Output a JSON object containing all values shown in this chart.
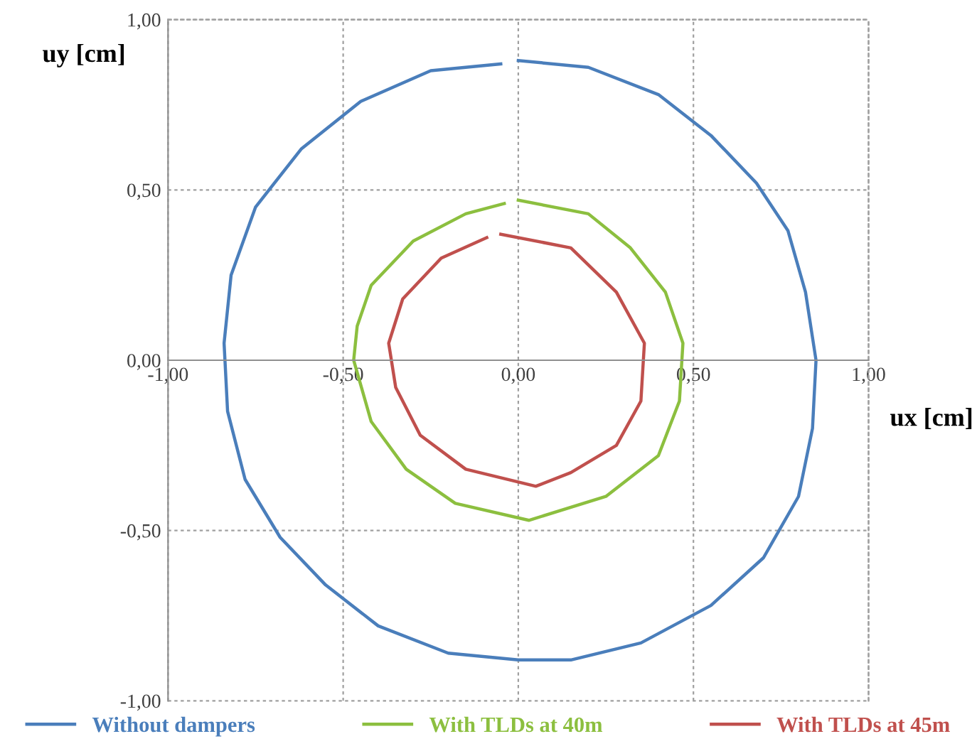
{
  "chart_data": {
    "type": "line",
    "xlabel": "ux [cm]",
    "ylabel": "uy [cm]",
    "xlim": [
      -1,
      1
    ],
    "ylim": [
      -1,
      1
    ],
    "xticks": [
      {
        "value": -1,
        "label": "-1,00"
      },
      {
        "value": -0.5,
        "label": "-0,50"
      },
      {
        "value": 0,
        "label": "0,00"
      },
      {
        "value": 0.5,
        "label": "0,50"
      },
      {
        "value": 1,
        "label": "1,00"
      }
    ],
    "yticks": [
      {
        "value": -1,
        "label": "-1,00"
      },
      {
        "value": -0.5,
        "label": "-0,50"
      },
      {
        "value": 0,
        "label": "0,00"
      },
      {
        "value": 0.5,
        "label": "0,50"
      },
      {
        "value": 1,
        "label": "1,00"
      }
    ],
    "grid": true,
    "legend": "bottom",
    "marker": "none",
    "line_style": "solid",
    "series": [
      {
        "name": "Without dampers",
        "color": "#4a7ebb",
        "x": [
          0,
          0.2,
          0.4,
          0.55,
          0.68,
          0.77,
          0.82,
          0.85,
          0.84,
          0.8,
          0.7,
          0.55,
          0.35,
          0.15,
          0,
          -0.2,
          -0.4,
          -0.55,
          -0.68,
          -0.78,
          -0.83,
          -0.84,
          -0.82,
          -0.75,
          -0.62,
          -0.45,
          -0.25,
          -0.05
        ],
        "values": [
          0.88,
          0.86,
          0.78,
          0.66,
          0.52,
          0.38,
          0.2,
          0,
          -0.2,
          -0.4,
          -0.58,
          -0.72,
          -0.83,
          -0.88,
          -0.88,
          -0.86,
          -0.78,
          -0.66,
          -0.52,
          -0.35,
          -0.15,
          0.05,
          0.25,
          0.45,
          0.62,
          0.76,
          0.85,
          0.87
        ]
      },
      {
        "name": "With TLDs at 40m",
        "color": "#8cbf3f",
        "x": [
          0,
          0.2,
          0.32,
          0.42,
          0.47,
          0.46,
          0.4,
          0.25,
          0.03,
          -0.18,
          -0.32,
          -0.42,
          -0.47,
          -0.46,
          -0.42,
          -0.3,
          -0.15,
          -0.04
        ],
        "values": [
          0.47,
          0.43,
          0.33,
          0.2,
          0.05,
          -0.12,
          -0.28,
          -0.4,
          -0.47,
          -0.42,
          -0.32,
          -0.18,
          0,
          0.1,
          0.22,
          0.35,
          0.43,
          0.46
        ]
      },
      {
        "name": "With TLDs at 45m",
        "color": "#c0504d",
        "x": [
          -0.05,
          0.15,
          0.28,
          0.36,
          0.35,
          0.28,
          0.15,
          0.05,
          -0.15,
          -0.28,
          -0.35,
          -0.37,
          -0.33,
          -0.22,
          -0.09
        ],
        "values": [
          0.37,
          0.33,
          0.2,
          0.05,
          -0.12,
          -0.25,
          -0.33,
          -0.37,
          -0.32,
          -0.22,
          -0.08,
          0.05,
          0.18,
          0.3,
          0.36
        ]
      }
    ]
  }
}
